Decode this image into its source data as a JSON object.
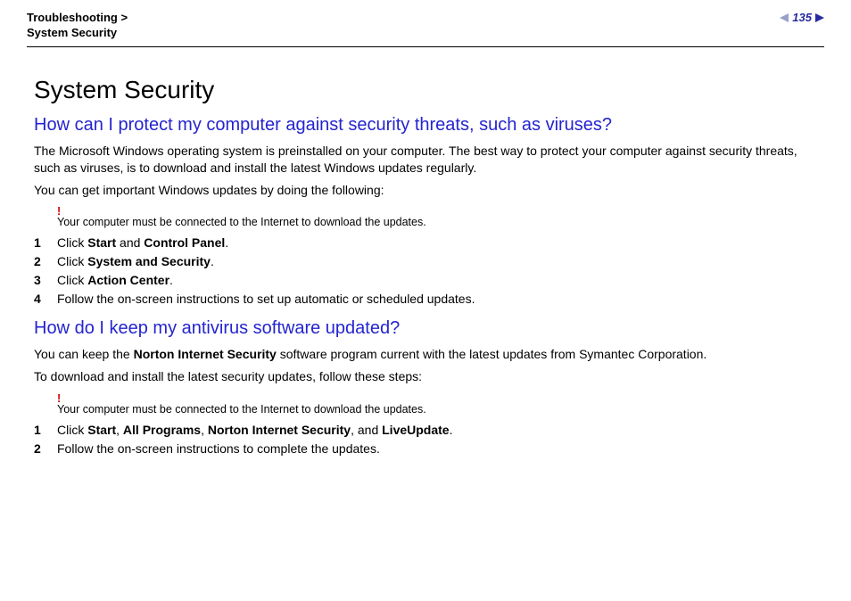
{
  "header": {
    "breadcrumb_top": "Troubleshooting",
    "breadcrumb_sep": ">",
    "breadcrumb_bottom": "System Security",
    "page_number": "135"
  },
  "main": {
    "title": "System Security",
    "section1": {
      "heading": "How can I protect my computer against security threats, such as viruses?",
      "p1": "The Microsoft Windows operating system is preinstalled on your computer. The best way to protect your computer against security threats, such as viruses, is to download and install the latest Windows updates regularly.",
      "p2": "You can get important Windows updates by doing the following:",
      "note_bang": "!",
      "note_text": "Your computer must be connected to the Internet to download the updates.",
      "steps": [
        {
          "n": "1",
          "pre": "Click ",
          "b1": "Start",
          "mid": " and ",
          "b2": "Control Panel",
          "post": "."
        },
        {
          "n": "2",
          "pre": "Click ",
          "b1": "System and Security",
          "mid": "",
          "b2": "",
          "post": "."
        },
        {
          "n": "3",
          "pre": "Click ",
          "b1": "Action Center",
          "mid": "",
          "b2": "",
          "post": "."
        },
        {
          "n": "4",
          "pre": "Follow the on-screen instructions to set up automatic or scheduled updates.",
          "b1": "",
          "mid": "",
          "b2": "",
          "post": ""
        }
      ]
    },
    "section2": {
      "heading": "How do I keep my antivirus software updated?",
      "p1_pre": "You can keep the ",
      "p1_b": "Norton Internet Security",
      "p1_post": " software program current with the latest updates from Symantec Corporation.",
      "p2": "To download and install the latest security updates, follow these steps:",
      "note_bang": "!",
      "note_text": "Your computer must be connected to the Internet to download the updates.",
      "steps": [
        {
          "n": "1",
          "pre": "Click ",
          "b1": "Start",
          "s1": ", ",
          "b2": "All Programs",
          "s2": ", ",
          "b3": "Norton Internet Security",
          "s3": ", and ",
          "b4": "LiveUpdate",
          "post": "."
        },
        {
          "n": "2",
          "pre": "Follow the on-screen instructions to complete the updates.",
          "b1": "",
          "s1": "",
          "b2": "",
          "s2": "",
          "b3": "",
          "s3": "",
          "b4": "",
          "post": ""
        }
      ]
    }
  }
}
